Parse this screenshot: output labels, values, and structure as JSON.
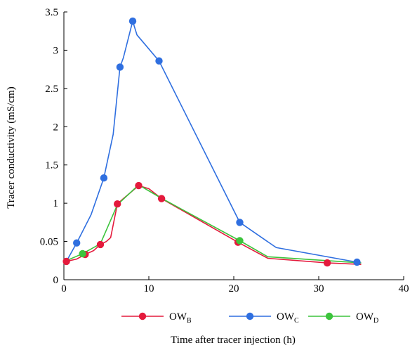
{
  "chart_data": {
    "type": "line",
    "xlabel": "Time after tracer injection (h)",
    "ylabel": "Tracer conductivity (mS/cm)",
    "xlim": [
      0,
      40
    ],
    "ylim": [
      0,
      3.5
    ],
    "x_ticks": [
      "0",
      "10",
      "20",
      "30",
      "40"
    ],
    "y_tick_labels": [
      "0",
      "0.05",
      "1",
      "1.5",
      "2",
      "2.5",
      "3",
      "3.5"
    ],
    "grid": false,
    "legend": {
      "placement": "bottom",
      "entries": [
        {
          "main": "OW",
          "sub": "B"
        },
        {
          "main": "OW",
          "sub": "C"
        },
        {
          "main": "OW",
          "sub": "D"
        }
      ]
    },
    "series": [
      {
        "label": "OWB",
        "color": "#e41a3c",
        "line": [
          [
            0.3,
            0.24
          ],
          [
            1.5,
            0.27
          ],
          [
            2.5,
            0.33
          ],
          [
            3.5,
            0.38
          ],
          [
            4.3,
            0.46
          ],
          [
            5,
            0.5
          ],
          [
            5.5,
            0.55
          ],
          [
            6.3,
            0.99
          ],
          [
            7,
            1.06
          ],
          [
            8.8,
            1.23
          ],
          [
            10,
            1.19
          ],
          [
            11.5,
            1.06
          ],
          [
            20.5,
            0.49
          ],
          [
            24,
            0.28
          ],
          [
            31,
            0.22
          ],
          [
            35,
            0.2
          ]
        ],
        "markers": [
          [
            0.3,
            0.24
          ],
          [
            2.5,
            0.33
          ],
          [
            4.3,
            0.46
          ],
          [
            6.3,
            0.99
          ],
          [
            8.8,
            1.23
          ],
          [
            11.5,
            1.06
          ],
          [
            20.5,
            0.49
          ],
          [
            31,
            0.22
          ]
        ]
      },
      {
        "label": "OWC",
        "color": "#2f6fe0",
        "line": [
          [
            0.3,
            0.24
          ],
          [
            1.5,
            0.48
          ],
          [
            3.2,
            0.85
          ],
          [
            4.7,
            1.33
          ],
          [
            5.8,
            1.9
          ],
          [
            6.6,
            2.78
          ],
          [
            7,
            2.9
          ],
          [
            8.1,
            3.38
          ],
          [
            8.6,
            3.2
          ],
          [
            11.2,
            2.86
          ],
          [
            20.7,
            0.75
          ],
          [
            25,
            0.42
          ],
          [
            34.5,
            0.23
          ]
        ],
        "markers": [
          [
            1.5,
            0.48
          ],
          [
            4.7,
            1.33
          ],
          [
            6.6,
            2.78
          ],
          [
            8.1,
            3.38
          ],
          [
            11.2,
            2.86
          ],
          [
            20.7,
            0.75
          ],
          [
            34.5,
            0.23
          ]
        ]
      },
      {
        "label": "OWD",
        "color": "#3cc43c",
        "line": [
          [
            0.3,
            0.25
          ],
          [
            2.2,
            0.34
          ],
          [
            4.3,
            0.47
          ],
          [
            6.3,
            0.98
          ],
          [
            8.8,
            1.24
          ],
          [
            11.4,
            1.07
          ],
          [
            20.7,
            0.51
          ],
          [
            24,
            0.3
          ],
          [
            35,
            0.22
          ]
        ],
        "markers": [
          [
            2.2,
            0.34
          ],
          [
            20.7,
            0.51
          ]
        ]
      }
    ]
  }
}
